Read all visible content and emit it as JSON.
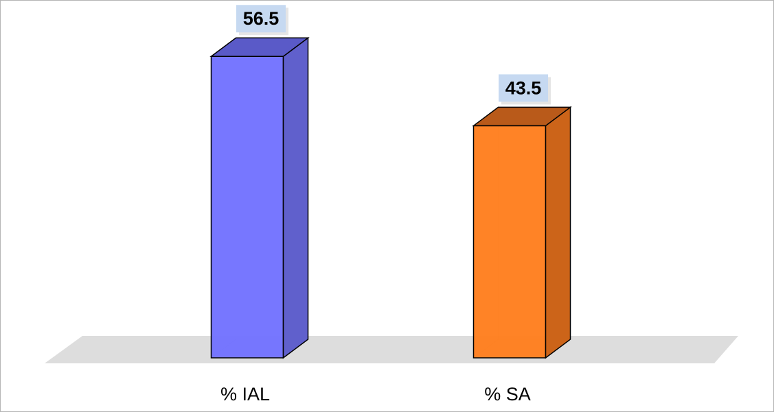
{
  "chart_data": {
    "type": "bar",
    "style": "3d",
    "categories": [
      "% IAL",
      "% SA"
    ],
    "values": [
      56.5,
      43.5
    ],
    "data_labels": [
      "56.5",
      "43.5"
    ],
    "title": "",
    "xlabel": "",
    "ylabel": "",
    "ylim": [
      0,
      60
    ],
    "grid": false,
    "legend": "none",
    "colors": {
      "bars": [
        "#7373FF",
        "#FF7F1F"
      ],
      "bar_sides": [
        "#6060CC",
        "#CC6419"
      ],
      "bar_tops": [
        "#5A5AC8",
        "#B95A1A"
      ],
      "floor": "#DDDDDD",
      "label_box": "#C6D9F1",
      "frame": "#B4B4B4"
    }
  }
}
